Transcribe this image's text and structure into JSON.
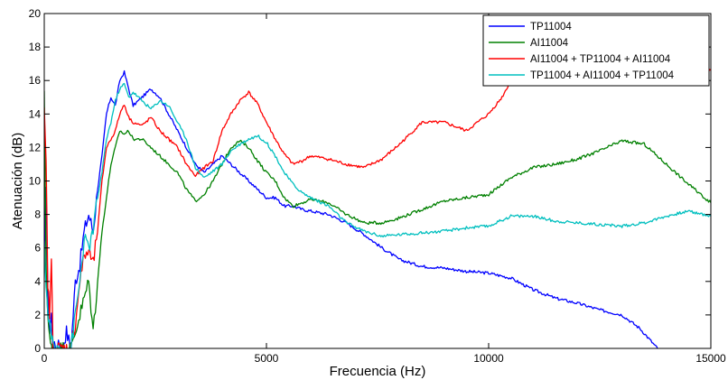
{
  "chart_data": {
    "type": "line",
    "title": "",
    "xlabel": "Frecuencia (Hz)",
    "ylabel": "Atenuación (dB)",
    "xlim": [
      0,
      15000
    ],
    "ylim": [
      0,
      20
    ],
    "xticks": [
      0,
      5000,
      10000,
      15000
    ],
    "yticks": [
      0,
      2,
      4,
      6,
      8,
      10,
      12,
      14,
      16,
      18,
      20
    ],
    "grid": false,
    "legend_position": "top-right",
    "series": [
      {
        "name": "TP11004",
        "color": "#0000ff",
        "x": [
          0,
          40,
          80,
          120,
          160,
          200,
          260,
          320,
          400,
          500,
          600,
          700,
          800,
          900,
          1000,
          1100,
          1200,
          1300,
          1400,
          1500,
          1600,
          1700,
          1800,
          1900,
          2000,
          2200,
          2400,
          2600,
          2800,
          3000,
          3200,
          3400,
          3600,
          3800,
          4000,
          4200,
          4400,
          4600,
          4800,
          5000,
          5200,
          5400,
          5600,
          5800,
          6000,
          6400,
          6800,
          7200,
          7600,
          8000,
          8500,
          9000,
          9500,
          10000,
          10500,
          11000,
          11500,
          12000,
          12500,
          13000,
          13400,
          13700,
          13800
        ],
        "values": [
          5,
          10,
          3,
          1,
          2,
          0,
          0,
          0.5,
          0,
          1,
          0,
          4,
          5,
          7,
          8,
          7,
          9.5,
          11.5,
          14,
          15,
          14.5,
          16,
          16.5,
          15.5,
          14.5,
          15,
          15.5,
          15,
          14,
          13,
          12,
          11,
          10.5,
          11,
          11.5,
          11,
          10.5,
          10,
          9.5,
          9,
          9,
          8.5,
          8.5,
          8.3,
          8.2,
          8,
          7.5,
          6.8,
          6,
          5.3,
          4.9,
          4.8,
          4.6,
          4.5,
          4.2,
          3.5,
          3,
          2.7,
          2.3,
          2,
          1.2,
          0.3,
          0
        ]
      },
      {
        "name": "AI11004",
        "color": "#008000",
        "x": [
          0,
          40,
          80,
          120,
          160,
          200,
          260,
          320,
          400,
          500,
          600,
          700,
          800,
          900,
          1000,
          1100,
          1200,
          1300,
          1400,
          1500,
          1600,
          1700,
          1800,
          1900,
          2000,
          2200,
          2400,
          2600,
          2800,
          3000,
          3200,
          3400,
          3600,
          3800,
          4000,
          4200,
          4400,
          4600,
          4800,
          5000,
          5200,
          5400,
          5600,
          5800,
          6000,
          6400,
          6800,
          7200,
          7600,
          8000,
          8500,
          9000,
          9500,
          10000,
          10500,
          11000,
          11500,
          12000,
          12500,
          13000,
          13500,
          14000,
          14500,
          15000
        ],
        "values": [
          15,
          5,
          2,
          0.5,
          0,
          0,
          0,
          0,
          0,
          0,
          0,
          1,
          2,
          3,
          4,
          1,
          4,
          7,
          9,
          11,
          12,
          13,
          12.8,
          13,
          12.5,
          12.5,
          12,
          11.5,
          11,
          10.5,
          9.5,
          8.8,
          9.2,
          10,
          11,
          12,
          12.4,
          12,
          11.2,
          10.5,
          10,
          9,
          8.5,
          8.7,
          8.9,
          8.7,
          8,
          7.5,
          7.5,
          7.8,
          8.3,
          8.8,
          9,
          9.2,
          10.2,
          10.8,
          11,
          11.3,
          11.8,
          12.4,
          12.2,
          11,
          9.8,
          8.7
        ]
      },
      {
        "name": "AI11004 + TP11004 + AI11004",
        "color": "#ff0000",
        "x": [
          0,
          40,
          80,
          120,
          160,
          200,
          260,
          320,
          400,
          500,
          600,
          700,
          800,
          900,
          1000,
          1100,
          1200,
          1300,
          1400,
          1500,
          1600,
          1700,
          1800,
          1900,
          2000,
          2200,
          2400,
          2600,
          2800,
          3000,
          3200,
          3400,
          3600,
          3800,
          4000,
          4200,
          4400,
          4600,
          4800,
          5000,
          5200,
          5400,
          5600,
          5800,
          6000,
          6400,
          6800,
          7200,
          7600,
          8000,
          8500,
          9000,
          9500,
          10000,
          10300,
          10500,
          10800,
          11000,
          11500,
          12000,
          12500,
          13000,
          13500,
          14000,
          14500,
          15000
        ],
        "values": [
          14,
          11,
          4,
          2,
          5,
          0,
          0,
          0,
          0,
          0,
          0,
          1.5,
          4,
          5.5,
          5.8,
          5,
          7,
          10,
          12,
          12.5,
          13,
          14,
          14.6,
          13.8,
          13.5,
          13.3,
          13.8,
          13,
          12.5,
          12,
          11,
          10.3,
          10.8,
          11.2,
          13,
          14,
          14.8,
          15.3,
          14.6,
          13.5,
          12.5,
          11.6,
          11,
          11.2,
          11.5,
          11.3,
          11,
          10.8,
          11.3,
          12.2,
          13.5,
          13.5,
          13,
          14,
          15,
          16,
          16.5,
          16.8,
          17,
          17.2,
          17,
          16.8,
          16.6,
          16.5,
          16.4,
          16.6
        ]
      },
      {
        "name": "TP11004 + AI11004 + TP11004",
        "color": "#00bfbf",
        "x": [
          0,
          40,
          80,
          120,
          160,
          200,
          260,
          320,
          400,
          500,
          600,
          700,
          800,
          900,
          1000,
          1100,
          1200,
          1300,
          1400,
          1500,
          1600,
          1700,
          1800,
          1900,
          2000,
          2200,
          2400,
          2600,
          2800,
          3000,
          3200,
          3400,
          3600,
          3800,
          4000,
          4200,
          4400,
          4600,
          4800,
          5000,
          5200,
          5400,
          5600,
          5800,
          6000,
          6400,
          6800,
          7200,
          7600,
          8000,
          8500,
          9000,
          9500,
          10000,
          10500,
          11000,
          11500,
          12000,
          12500,
          13000,
          13500,
          14000,
          14500,
          15000
        ],
        "values": [
          6,
          4,
          2,
          1.5,
          1,
          0,
          0,
          0,
          0,
          0,
          0,
          2,
          4,
          6.5,
          6,
          7,
          9,
          10.5,
          12.5,
          13.5,
          14.8,
          15.5,
          15.8,
          15,
          15.3,
          14.8,
          14.3,
          14.8,
          14.5,
          13.5,
          12.5,
          10.8,
          10.2,
          10.6,
          11,
          11.8,
          12.2,
          12.5,
          12.7,
          12.3,
          11.5,
          10.5,
          9.8,
          9.3,
          9,
          8.5,
          7.5,
          7,
          6.7,
          6.8,
          6.9,
          7,
          7.2,
          7.3,
          7.9,
          7.9,
          7.6,
          7.5,
          7.4,
          7.3,
          7.5,
          7.9,
          8.2,
          7.9
        ]
      }
    ]
  }
}
